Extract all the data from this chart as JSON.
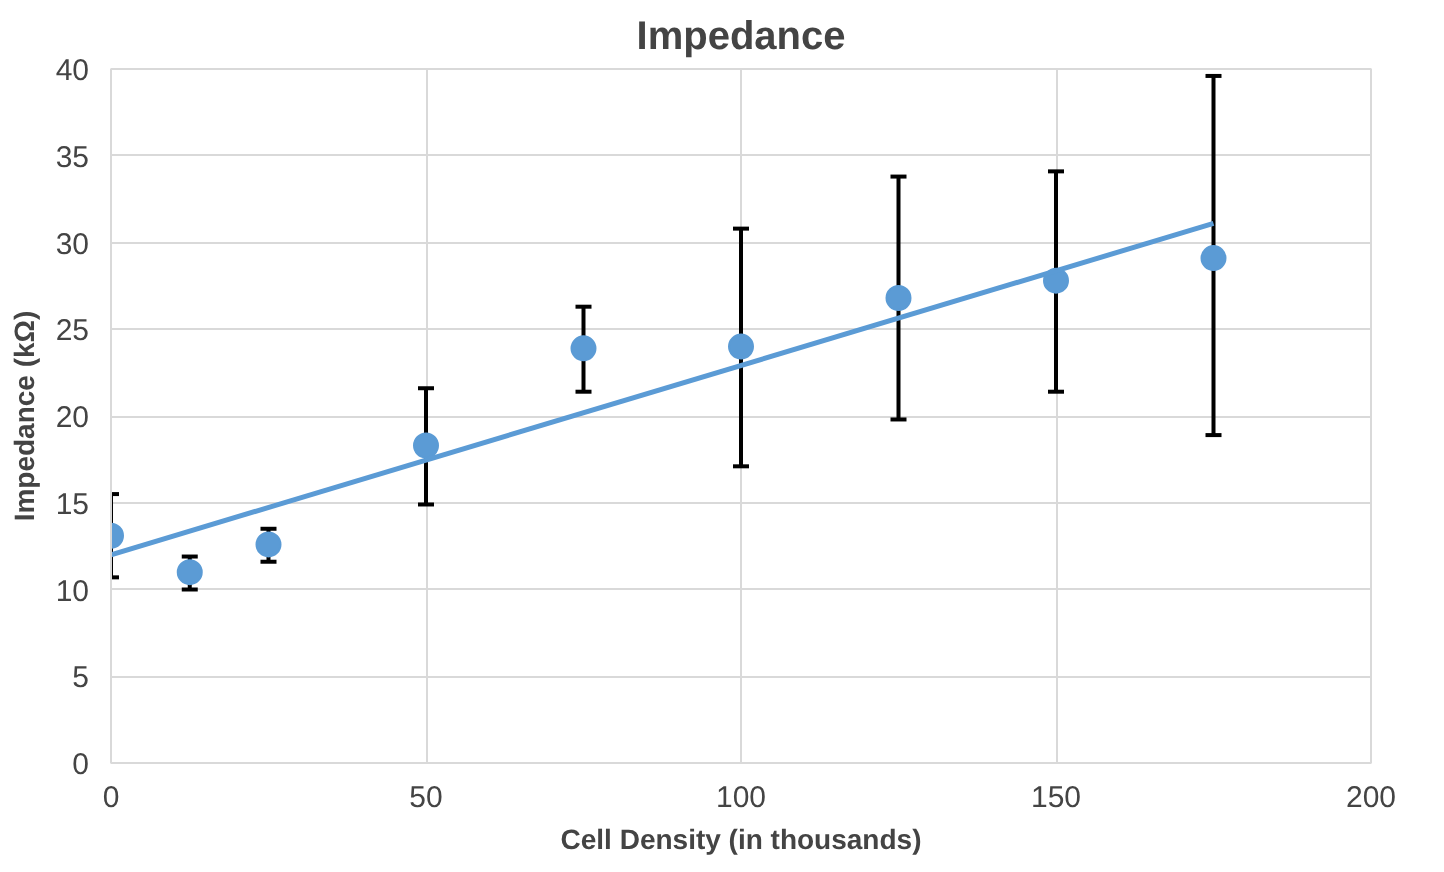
{
  "chart_data": {
    "type": "scatter",
    "title": "Impedance",
    "xlabel": "Cell Density (in thousands)",
    "ylabel": "Impedance (kΩ)",
    "xlim": [
      0,
      200
    ],
    "xticks": [
      0,
      50,
      100,
      150,
      200
    ],
    "ylim": [
      0,
      40
    ],
    "yticks": [
      0,
      5,
      10,
      15,
      20,
      25,
      30,
      35,
      40
    ],
    "grid": true,
    "series": [
      {
        "marker": "circle",
        "color": "#5b9bd5",
        "x": [
          0,
          12.5,
          25,
          50,
          75,
          100,
          125,
          150,
          175
        ],
        "values": [
          13.1,
          11.0,
          12.6,
          18.3,
          23.9,
          24.0,
          26.8,
          27.8,
          29.1
        ],
        "errors": [
          [
            10.7,
            15.5
          ],
          [
            10.0,
            11.9
          ],
          [
            11.6,
            13.5
          ],
          [
            14.9,
            21.6
          ],
          [
            21.4,
            26.3
          ],
          [
            17.1,
            30.8
          ],
          [
            19.8,
            33.8
          ],
          [
            21.4,
            34.1
          ],
          [
            18.9,
            39.6
          ]
        ]
      },
      {
        "type": "line",
        "color": "#5b9bd5",
        "x": [
          0,
          175
        ],
        "values": [
          12.0,
          31.1
        ],
        "line_style": "solid"
      }
    ]
  }
}
